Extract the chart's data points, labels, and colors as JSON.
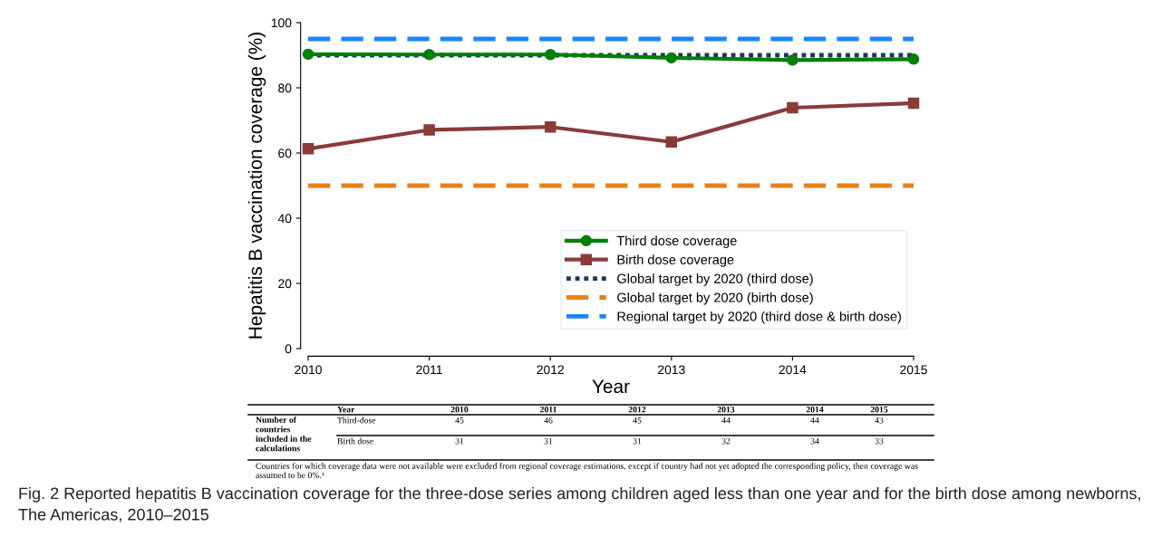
{
  "chart_data": {
    "type": "line",
    "xlabel": "Year",
    "ylabel": "Hepatitis B vaccination coverage (%)",
    "x": [
      2010,
      2011,
      2012,
      2013,
      2014,
      2015
    ],
    "xlim": [
      2010,
      2015
    ],
    "xticks": [
      2010,
      2011,
      2012,
      2013,
      2014,
      2015
    ],
    "ylim": [
      0,
      100
    ],
    "yticks": [
      0,
      20,
      40,
      60,
      80,
      100
    ],
    "series": [
      {
        "name": "Third dose coverage",
        "color": "#008000",
        "marker": "circle",
        "values": [
          90.3,
          90.2,
          90.2,
          89.2,
          88.5,
          88.8
        ]
      },
      {
        "name": "Birth dose coverage",
        "color": "#8b3a3a",
        "marker": "square",
        "values": [
          61.3,
          67.1,
          68.0,
          63.4,
          73.9,
          75.3
        ]
      }
    ],
    "ref_lines": [
      {
        "axis": "y",
        "value": 90,
        "label": "Global target by 2020 (third dose)",
        "color": "#1f3366",
        "line_style": "dotted"
      },
      {
        "axis": "y",
        "value": 50,
        "label": "Global target by 2020 (birth dose)",
        "color": "#e8801a",
        "line_style": "dashed"
      },
      {
        "axis": "y",
        "value": 95,
        "label": "Regional target by 2020 (third dose & birth dose)",
        "color": "#1a85ff",
        "line_style": "dashed"
      }
    ],
    "legend": "bottom right",
    "grid": false,
    "annotations": [
      "Year",
      "2010",
      "2011",
      "2012",
      "2013",
      "2014",
      "2015",
      "Number of countries included in the calculations",
      "Third-dose",
      "45",
      "46",
      "45",
      "44",
      "44",
      "43",
      "Birth dose",
      "31",
      "31",
      "31",
      "32",
      "34",
      "33",
      "Countries for which coverage data were not available were excluded from regional coverage estimations, except if country had not yet adopted the corresponding policy, then coverage was assumed to be 0%.¹",
      "Fig. 2 Reported hepatitis B vaccination coverage for the three-dose series among children aged less than one year and for the birth dose among newborns, The Americas, 2010–2015"
    ]
  }
}
